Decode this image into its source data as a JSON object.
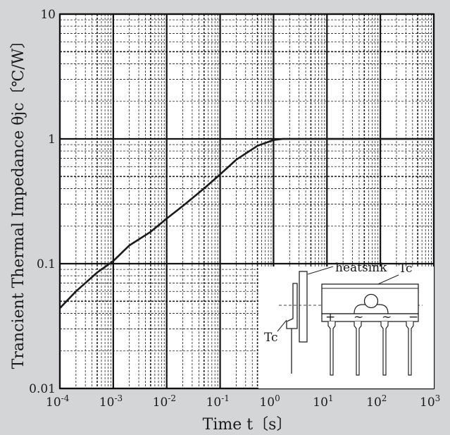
{
  "chart_data": {
    "type": "line",
    "xscale": "log",
    "yscale": "log",
    "xlim": [
      0.0001,
      1000
    ],
    "ylim": [
      0.01,
      10
    ],
    "xlabel": "Time  t〔s〕",
    "ylabel": "Trancient Thermal Impedance  θjc〔℃/W〕",
    "x_ticks": [
      "10",
      "-4",
      "10",
      "-3",
      "10",
      "-2",
      "10",
      "-1",
      "10",
      "0",
      "10",
      "1",
      "10",
      "2",
      "10",
      "3"
    ],
    "x_tick_values": [
      0.0001,
      0.001,
      0.01,
      0.1,
      1,
      10,
      100,
      1000
    ],
    "y_ticks": [
      "0.01",
      "0.1",
      "1",
      "10"
    ],
    "y_tick_values": [
      0.01,
      0.1,
      1,
      10
    ],
    "grid": true,
    "series": [
      {
        "x": [
          0.0001,
          0.0002,
          0.0005,
          0.001,
          0.002,
          0.005,
          0.01,
          0.02,
          0.05,
          0.1,
          0.2,
          0.5,
          1,
          1.5,
          2,
          5,
          10,
          100,
          1000
        ],
        "y": [
          0.044,
          0.06,
          0.085,
          0.105,
          0.14,
          0.18,
          0.23,
          0.29,
          0.4,
          0.52,
          0.68,
          0.88,
          0.98,
          1.0,
          1.0,
          1.0,
          1.0,
          1.0,
          1.0
        ]
      }
    ]
  },
  "inset": {
    "heatsink_label": "heatsink",
    "tc_label_top": "Tc",
    "tc_label_side": "Tc",
    "pin_labels": [
      "+",
      "~",
      "~",
      "−"
    ]
  }
}
